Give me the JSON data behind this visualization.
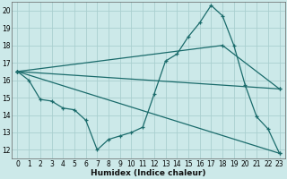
{
  "title": "",
  "xlabel": "Humidex (Indice chaleur)",
  "xlim": [
    -0.5,
    23.5
  ],
  "ylim": [
    11.5,
    20.5
  ],
  "yticks": [
    12,
    13,
    14,
    15,
    16,
    17,
    18,
    19,
    20
  ],
  "xticks": [
    0,
    1,
    2,
    3,
    4,
    5,
    6,
    7,
    8,
    9,
    10,
    11,
    12,
    13,
    14,
    15,
    16,
    17,
    18,
    19,
    20,
    21,
    22,
    23
  ],
  "bg_color": "#cce9e9",
  "grid_color": "#aacfcf",
  "line_color": "#1a6b6b",
  "series": [
    {
      "x": [
        0,
        1,
        2,
        3,
        4,
        5,
        6,
        7,
        8,
        9,
        10,
        11,
        12,
        13,
        14,
        15,
        16,
        17,
        18,
        19,
        20,
        21,
        22,
        23
      ],
      "y": [
        16.5,
        16.0,
        14.9,
        14.8,
        14.4,
        14.3,
        13.7,
        12.0,
        12.6,
        12.8,
        13.0,
        13.3,
        15.2,
        17.1,
        17.5,
        18.5,
        19.3,
        20.3,
        19.7,
        18.0,
        15.7,
        13.9,
        13.2,
        11.8
      ]
    },
    {
      "x": [
        0,
        18,
        23
      ],
      "y": [
        16.5,
        18.0,
        15.5
      ]
    },
    {
      "x": [
        0,
        23
      ],
      "y": [
        16.5,
        15.5
      ]
    },
    {
      "x": [
        0,
        23
      ],
      "y": [
        16.5,
        11.8
      ]
    }
  ]
}
